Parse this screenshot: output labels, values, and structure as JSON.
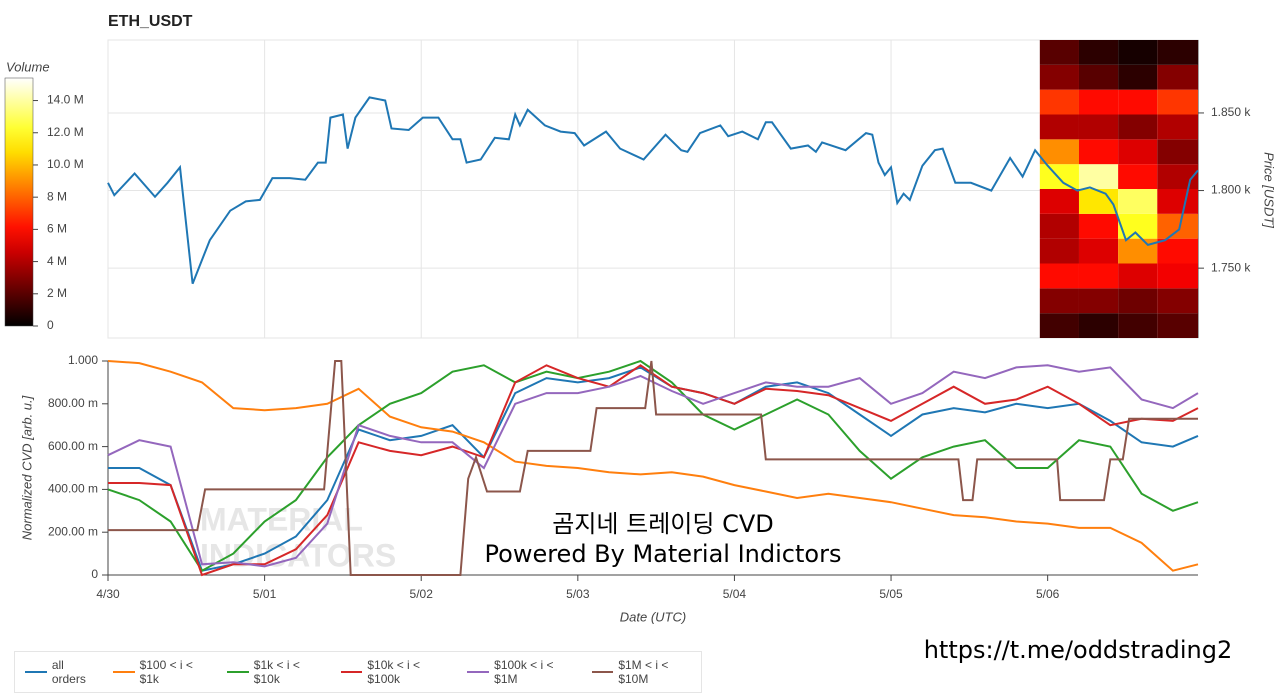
{
  "chart_data": [
    {
      "type": "line",
      "title": "ETH_USDT",
      "y_label": "Price [USDT]",
      "color": "#1f77b4",
      "grid": true,
      "xlim": [
        0,
        6.96
      ],
      "ylim": [
        1705,
        1897
      ],
      "yticks": [
        {
          "value": 1750,
          "label": "1.750 k"
        },
        {
          "value": 1800,
          "label": "1.800 k"
        },
        {
          "value": 1850,
          "label": "1.850 k"
        }
      ],
      "x": [
        0.0,
        0.04,
        0.17,
        0.3,
        0.38,
        0.46,
        0.54,
        0.65,
        0.78,
        0.88,
        0.97,
        1.05,
        1.16,
        1.26,
        1.34,
        1.39,
        1.42,
        1.5,
        1.53,
        1.58,
        1.67,
        1.77,
        1.81,
        1.92,
        2.01,
        2.11,
        2.2,
        2.25,
        2.29,
        2.38,
        2.47,
        2.56,
        2.6,
        2.63,
        2.68,
        2.79,
        2.89,
        2.98,
        3.04,
        3.18,
        3.27,
        3.42,
        3.56,
        3.66,
        3.7,
        3.78,
        3.91,
        3.96,
        4.05,
        4.15,
        4.2,
        4.24,
        4.36,
        4.47,
        4.52,
        4.56,
        4.71,
        4.84,
        4.88,
        4.92,
        4.96,
        5.0,
        5.04,
        5.08,
        5.12,
        5.2,
        5.28,
        5.33,
        5.41,
        5.51,
        5.64,
        5.76,
        5.84,
        5.92,
        6.0,
        6.1,
        6.19,
        6.27,
        6.37,
        6.42,
        6.5,
        6.56,
        6.64,
        6.75,
        6.84,
        6.91,
        6.96
      ],
      "values": [
        1805,
        1797,
        1811,
        1796,
        1805,
        1815,
        1740,
        1768,
        1787,
        1793,
        1794,
        1808,
        1808,
        1807,
        1818,
        1818,
        1847,
        1849,
        1827,
        1847,
        1860,
        1858,
        1840,
        1839,
        1847,
        1847,
        1833,
        1833,
        1818,
        1820,
        1834,
        1833,
        1849,
        1842,
        1852,
        1842,
        1838,
        1837,
        1829,
        1838,
        1827,
        1820,
        1836,
        1826,
        1825,
        1837,
        1842,
        1835,
        1838,
        1833,
        1844,
        1844,
        1827,
        1829,
        1825,
        1831,
        1826,
        1837,
        1836,
        1818,
        1810,
        1815,
        1792,
        1798,
        1794,
        1816,
        1826,
        1827,
        1805,
        1805,
        1800,
        1821,
        1809,
        1826,
        1816,
        1805,
        1800,
        1802,
        1798,
        1791,
        1768,
        1773,
        1765,
        1768,
        1775,
        1807,
        1813
      ],
      "heatmap": {
        "colormap": "hot",
        "colorbar_label": "Volume",
        "clim": [
          0,
          15400000
        ],
        "colorbar_ticks": [
          0,
          {
            "value": 2000000,
            "label": "2 M"
          },
          {
            "value": 4000000,
            "label": "4 M"
          },
          {
            "value": 6000000,
            "label": "6 M"
          },
          {
            "value": 8000000,
            "label": "8 M"
          },
          {
            "value": 10000000,
            "label": "10.0 M"
          },
          {
            "value": 12000000,
            "label": "12.0 M"
          },
          {
            "value": 14000000,
            "label": "14.0 M"
          }
        ],
        "x_edges": [
          5.95,
          6.2,
          6.45,
          6.7,
          6.96
        ],
        "y_edges": [
          1705,
          1721,
          1737,
          1753,
          1769,
          1785,
          1801,
          1817,
          1833,
          1849,
          1865,
          1881,
          1897
        ],
        "values": [
          [
            1500000,
            1000000,
            1500000,
            2000000
          ],
          [
            3000000,
            3000000,
            2500000,
            3000000
          ],
          [
            6000000,
            6000000,
            5000000,
            5500000
          ],
          [
            4000000,
            5000000,
            9000000,
            6000000
          ],
          [
            4000000,
            6000000,
            12000000,
            8000000
          ],
          [
            5000000,
            11000000,
            13000000,
            5000000
          ],
          [
            12000000,
            14000000,
            6000000,
            4000000
          ],
          [
            9000000,
            6000000,
            5000000,
            3000000
          ],
          [
            4000000,
            4000000,
            3000000,
            4000000
          ],
          [
            7000000,
            6000000,
            6000000,
            7000000
          ],
          [
            3000000,
            2000000,
            1000000,
            3000000
          ],
          [
            2000000,
            1000000,
            500000,
            1000000
          ]
        ]
      }
    },
    {
      "type": "line",
      "x_label": "Date (UTC)",
      "y_label": "Normalized CVD [arb. u.]",
      "legend": "bottom-left",
      "xlim": [
        0,
        6.96
      ],
      "ylim": [
        0,
        1
      ],
      "xticks": [
        {
          "value": 0,
          "label": "4/30"
        },
        {
          "value": 1,
          "label": "5/01"
        },
        {
          "value": 2,
          "label": "5/02"
        },
        {
          "value": 3,
          "label": "5/03"
        },
        {
          "value": 4,
          "label": "5/04"
        },
        {
          "value": 5,
          "label": "5/05"
        },
        {
          "value": 6,
          "label": "5/06"
        }
      ],
      "yticks": [
        0,
        {
          "value": 0.2,
          "label": "200.00 m"
        },
        {
          "value": 0.4,
          "label": "400.00 m"
        },
        {
          "value": 0.6,
          "label": "600.00 m"
        },
        {
          "value": 0.8,
          "label": "800.00 m"
        },
        {
          "value": 1,
          "label": "1.000"
        }
      ],
      "annotations": [
        "곰지네 트레이딩 CVD",
        "Powered By Material Indictors"
      ],
      "watermark": [
        "MATERIAL",
        "INDICATORS"
      ],
      "x": [
        0,
        0.2,
        0.4,
        0.6,
        0.8,
        1.0,
        1.2,
        1.4,
        1.6,
        1.8,
        2.0,
        2.2,
        2.4,
        2.6,
        2.8,
        3.0,
        3.2,
        3.4,
        3.6,
        3.8,
        4.0,
        4.2,
        4.4,
        4.6,
        4.8,
        5.0,
        5.2,
        5.4,
        5.6,
        5.8,
        6.0,
        6.2,
        6.4,
        6.6,
        6.8,
        6.96
      ],
      "series": [
        {
          "name": "all orders",
          "color": "#1f77b4",
          "values": [
            0.5,
            0.5,
            0.42,
            0.02,
            0.05,
            0.1,
            0.18,
            0.35,
            0.68,
            0.63,
            0.65,
            0.7,
            0.55,
            0.85,
            0.92,
            0.9,
            0.92,
            0.97,
            0.88,
            0.85,
            0.8,
            0.88,
            0.9,
            0.85,
            0.75,
            0.65,
            0.75,
            0.78,
            0.76,
            0.8,
            0.78,
            0.8,
            0.72,
            0.62,
            0.6,
            0.65
          ]
        },
        {
          "name": "$100 < i < $1k",
          "color": "#ff7f0e",
          "values": [
            1.0,
            0.99,
            0.95,
            0.9,
            0.78,
            0.77,
            0.78,
            0.8,
            0.87,
            0.74,
            0.69,
            0.67,
            0.62,
            0.53,
            0.51,
            0.5,
            0.48,
            0.47,
            0.48,
            0.46,
            0.42,
            0.39,
            0.36,
            0.38,
            0.36,
            0.34,
            0.31,
            0.28,
            0.27,
            0.25,
            0.24,
            0.22,
            0.22,
            0.15,
            0.02,
            0.05
          ]
        },
        {
          "name": "$1k < i < $10k",
          "color": "#2ca02c",
          "values": [
            0.4,
            0.35,
            0.25,
            0.02,
            0.1,
            0.25,
            0.35,
            0.55,
            0.7,
            0.8,
            0.85,
            0.95,
            0.98,
            0.9,
            0.95,
            0.92,
            0.95,
            1.0,
            0.9,
            0.75,
            0.68,
            0.75,
            0.82,
            0.75,
            0.58,
            0.45,
            0.55,
            0.6,
            0.63,
            0.5,
            0.5,
            0.63,
            0.6,
            0.38,
            0.3,
            0.34
          ]
        },
        {
          "name": "$10k < i < $100k",
          "color": "#d62728",
          "values": [
            0.43,
            0.43,
            0.42,
            0.0,
            0.05,
            0.05,
            0.12,
            0.28,
            0.62,
            0.58,
            0.56,
            0.6,
            0.55,
            0.9,
            0.98,
            0.92,
            0.88,
            0.98,
            0.88,
            0.85,
            0.8,
            0.87,
            0.86,
            0.84,
            0.78,
            0.72,
            0.8,
            0.88,
            0.8,
            0.82,
            0.88,
            0.8,
            0.7,
            0.73,
            0.72,
            0.78
          ]
        },
        {
          "name": "$100k < i < $1M",
          "color": "#9467bd",
          "values": [
            0.56,
            0.63,
            0.6,
            0.05,
            0.06,
            0.04,
            0.08,
            0.24,
            0.7,
            0.65,
            0.62,
            0.62,
            0.5,
            0.8,
            0.85,
            0.85,
            0.88,
            0.93,
            0.86,
            0.8,
            0.85,
            0.9,
            0.88,
            0.88,
            0.92,
            0.8,
            0.85,
            0.95,
            0.92,
            0.97,
            0.98,
            0.95,
            0.97,
            0.82,
            0.78,
            0.85
          ]
        },
        {
          "name": "$1M < i < $10M",
          "color": "#8c564b",
          "x": [
            0,
            0.57,
            0.62,
            1.38,
            1.45,
            1.49,
            1.55,
            2.25,
            2.3,
            2.35,
            2.42,
            2.63,
            2.68,
            3.08,
            3.12,
            3.43,
            3.47,
            3.5,
            4.17,
            4.2,
            5.43,
            5.46,
            5.52,
            5.55,
            6.06,
            6.08,
            6.36,
            6.4,
            6.48,
            6.52,
            6.96
          ],
          "values": [
            0.21,
            0.21,
            0.4,
            0.4,
            1.0,
            1.0,
            0.0,
            0.0,
            0.45,
            0.55,
            0.39,
            0.39,
            0.58,
            0.58,
            0.78,
            0.78,
            1.0,
            0.75,
            0.75,
            0.54,
            0.54,
            0.35,
            0.35,
            0.54,
            0.54,
            0.35,
            0.35,
            0.54,
            0.54,
            0.73,
            0.73
          ]
        }
      ]
    }
  ],
  "link": "https://t.me/oddstrading2"
}
